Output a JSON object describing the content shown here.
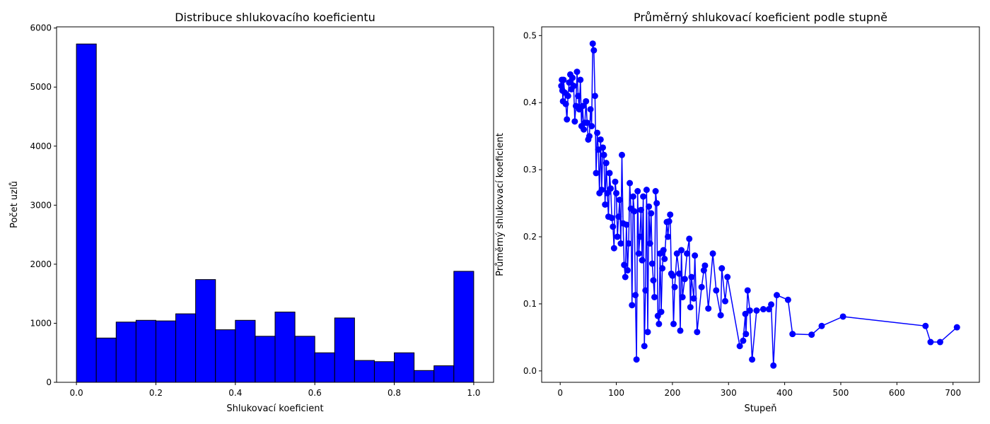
{
  "chart_data": [
    {
      "type": "histogram",
      "title": "Distribuce shlukovacího koeficientu",
      "x_label": "Shlukovací koeficient",
      "y_label": "Počet uzlů",
      "bins": [
        0,
        0.05,
        0.1,
        0.15,
        0.2,
        0.25,
        0.3,
        0.35,
        0.4,
        0.45,
        0.5,
        0.55,
        0.6,
        0.65,
        0.7,
        0.75,
        0.8,
        0.85,
        0.9,
        0.95,
        1
      ],
      "values": [
        5730,
        750,
        1020,
        1050,
        1040,
        1160,
        1740,
        890,
        1050,
        780,
        1190,
        780,
        500,
        1090,
        370,
        350,
        500,
        200,
        280,
        1880
      ],
      "color": "#0000ff",
      "edge_color": "#000000",
      "xlim": [
        -0.05,
        1.05
      ],
      "xticks": [
        {
          "value": 0,
          "label": "0.0"
        },
        0.2,
        0.4,
        0.6,
        0.8,
        {
          "value": 1,
          "label": "1.0"
        }
      ],
      "ylim": [
        0,
        6020
      ],
      "yticks": [
        0,
        1000,
        2000,
        3000,
        4000,
        5000,
        6000
      ]
    },
    {
      "type": "line",
      "title": "Průměrný shlukovací koeficient podle stupně",
      "x_label": "Stupeň",
      "y_label": "Průměrný shlukovací koeficient",
      "x": [
        2,
        3,
        4,
        5,
        6,
        8,
        10,
        12,
        14,
        16,
        18,
        20,
        22,
        24,
        26,
        28,
        30,
        32,
        34,
        36,
        38,
        40,
        42,
        44,
        46,
        48,
        50,
        52,
        54,
        56,
        58,
        60,
        62,
        64,
        66,
        68,
        70,
        72,
        74,
        76,
        78,
        80,
        82,
        84,
        86,
        88,
        90,
        92,
        94,
        96,
        98,
        100,
        102,
        104,
        106,
        108,
        110,
        112,
        114,
        116,
        118,
        120,
        122,
        124,
        126,
        128,
        130,
        132,
        134,
        136,
        138,
        140,
        142,
        144,
        146,
        148,
        150,
        152,
        154,
        156,
        158,
        160,
        162,
        164,
        166,
        168,
        170,
        172,
        174,
        176,
        178,
        180,
        182,
        184,
        186,
        190,
        192,
        194,
        196,
        198,
        200,
        202,
        204,
        208,
        212,
        214,
        216,
        218,
        222,
        226,
        230,
        232,
        234,
        238,
        240,
        244,
        252,
        256,
        258,
        264,
        272,
        278,
        286,
        288,
        294,
        298,
        320,
        326,
        330,
        331,
        334,
        338,
        342,
        350,
        362,
        372,
        376,
        380,
        386,
        406,
        414,
        448,
        466,
        504,
        651,
        660,
        677,
        707
      ],
      "values": [
        0.425,
        0.434,
        0.418,
        0.402,
        0.434,
        0.415,
        0.398,
        0.375,
        0.41,
        0.43,
        0.442,
        0.42,
        0.437,
        0.425,
        0.372,
        0.395,
        0.446,
        0.41,
        0.39,
        0.434,
        0.365,
        0.395,
        0.36,
        0.37,
        0.402,
        0.37,
        0.345,
        0.35,
        0.39,
        0.365,
        0.488,
        0.478,
        0.41,
        0.295,
        0.355,
        0.33,
        0.265,
        0.345,
        0.27,
        0.333,
        0.322,
        0.248,
        0.31,
        0.265,
        0.23,
        0.295,
        0.272,
        0.228,
        0.215,
        0.183,
        0.282,
        0.265,
        0.2,
        0.23,
        0.255,
        0.19,
        0.322,
        0.22,
        0.158,
        0.14,
        0.218,
        0.15,
        0.19,
        0.28,
        0.242,
        0.098,
        0.26,
        0.238,
        0.113,
        0.017,
        0.268,
        0.175,
        0.2,
        0.24,
        0.165,
        0.26,
        0.037,
        0.12,
        0.27,
        0.058,
        0.245,
        0.19,
        0.235,
        0.16,
        0.135,
        0.11,
        0.268,
        0.25,
        0.082,
        0.07,
        0.175,
        0.088,
        0.153,
        0.18,
        0.167,
        0.222,
        0.2,
        0.223,
        0.233,
        0.145,
        0.142,
        0.07,
        0.125,
        0.175,
        0.145,
        0.06,
        0.18,
        0.11,
        0.137,
        0.175,
        0.197,
        0.095,
        0.14,
        0.108,
        0.172,
        0.058,
        0.125,
        0.15,
        0.157,
        0.093,
        0.175,
        0.12,
        0.083,
        0.153,
        0.104,
        0.14,
        0.037,
        0.045,
        0.085,
        0.055,
        0.12,
        0.09,
        0.017,
        0.09,
        0.092,
        0.092,
        0.099,
        0.008,
        0.113,
        0.106,
        0.055,
        0.054,
        0.067,
        0.081,
        0.067,
        0.043,
        0.043,
        0.065
      ],
      "color": "#0000ff",
      "xlim": [
        -33,
        747
      ],
      "xticks": [
        0,
        100,
        200,
        300,
        400,
        500,
        600,
        700
      ],
      "ylim": [
        -0.017,
        0.513
      ],
      "yticks": [
        {
          "value": 0,
          "label": "0.0"
        },
        0.1,
        0.2,
        0.3,
        0.4,
        0.5
      ]
    }
  ]
}
